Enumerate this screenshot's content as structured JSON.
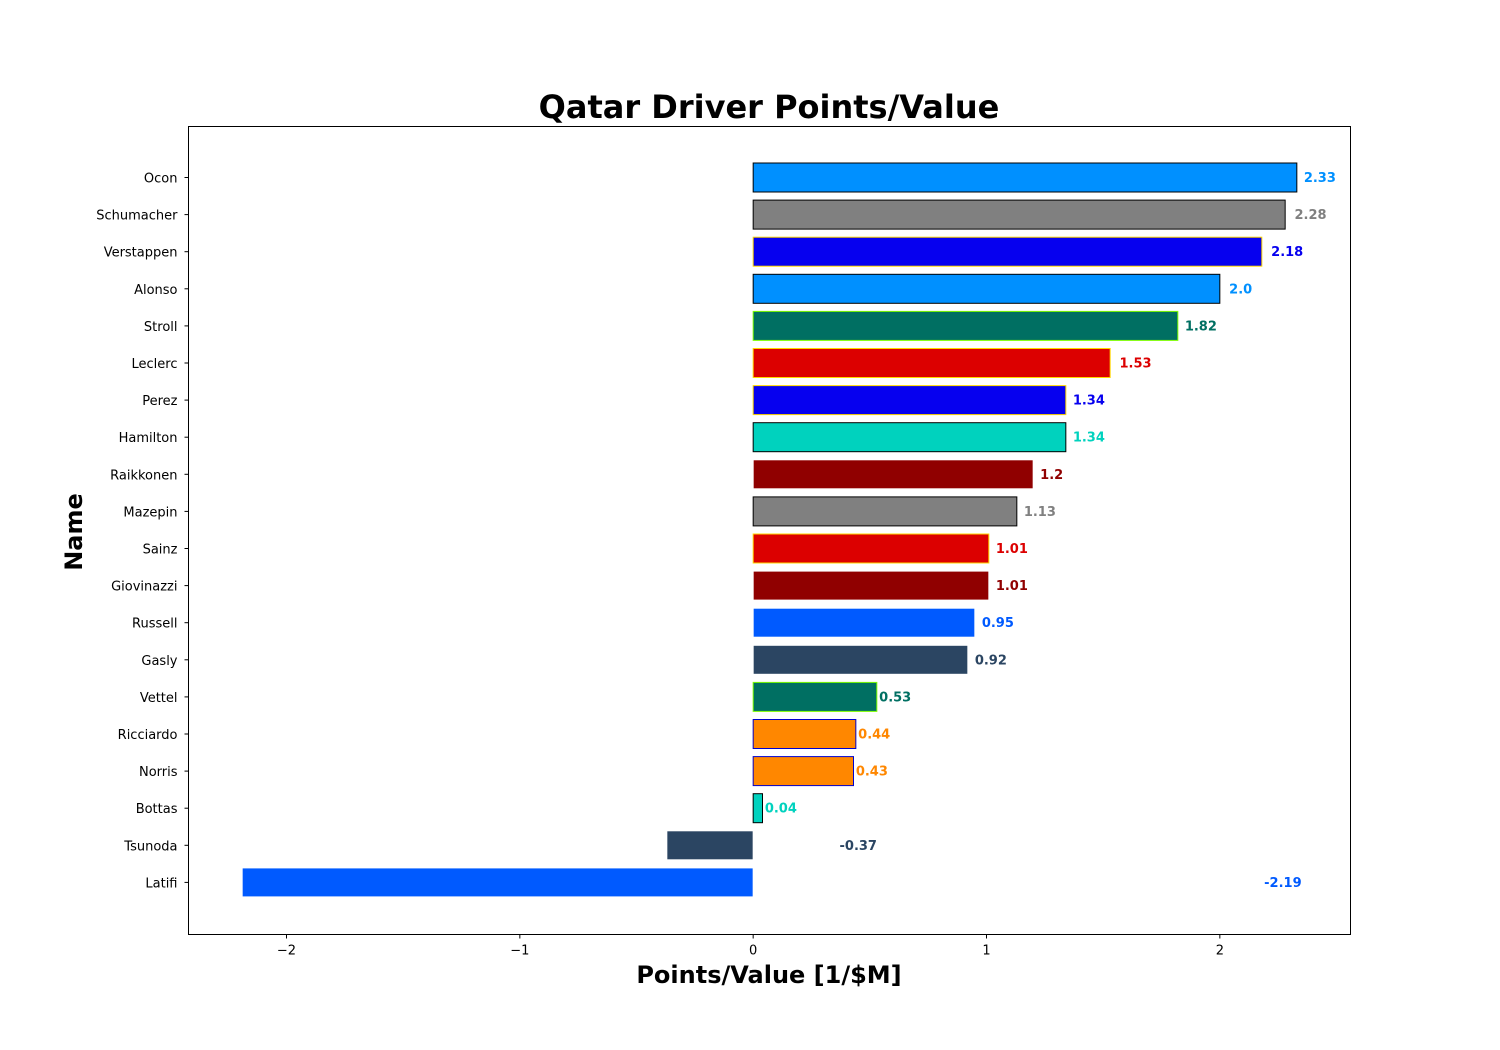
{
  "chart_data": {
    "type": "bar",
    "orientation": "horizontal",
    "title": "Qatar Driver Points/Value",
    "xlabel": "Points/Value [1/$M]",
    "ylabel": "Name",
    "xlim": [
      -2.42,
      2.56
    ],
    "xticks": [
      -2,
      -1,
      0,
      1,
      2
    ],
    "xtick_labels": [
      "−2",
      "−1",
      "0",
      "1",
      "2"
    ],
    "grid": false,
    "bars": [
      {
        "name": "Ocon",
        "value": 2.33,
        "label": "2.33",
        "label_x": 2.36,
        "fill": "#0090FF",
        "edge": "#000000"
      },
      {
        "name": "Schumacher",
        "value": 2.28,
        "label": "2.28",
        "label_x": 2.32,
        "fill": "#808080",
        "edge": "#000000"
      },
      {
        "name": "Verstappen",
        "value": 2.18,
        "label": "2.18",
        "label_x": 2.22,
        "fill": "#0600EF",
        "edge": "#FFD700"
      },
      {
        "name": "Alonso",
        "value": 2.0,
        "label": "2.0",
        "label_x": 2.04,
        "fill": "#0090FF",
        "edge": "#000000"
      },
      {
        "name": "Stroll",
        "value": 1.82,
        "label": "1.82",
        "label_x": 1.85,
        "fill": "#006F62",
        "edge": "#7CFC00"
      },
      {
        "name": "Leclerc",
        "value": 1.53,
        "label": "1.53",
        "label_x": 1.57,
        "fill": "#DC0000",
        "edge": "#FFD700"
      },
      {
        "name": "Perez",
        "value": 1.34,
        "label": "1.34",
        "label_x": 1.37,
        "fill": "#0600EF",
        "edge": "#FFD700"
      },
      {
        "name": "Hamilton",
        "value": 1.34,
        "label": "1.34",
        "label_x": 1.37,
        "fill": "#00D2BE",
        "edge": "#000000"
      },
      {
        "name": "Raikkonen",
        "value": 1.2,
        "label": "1.2",
        "label_x": 1.23,
        "fill": "#900000",
        "edge": "#FFFFFF"
      },
      {
        "name": "Mazepin",
        "value": 1.13,
        "label": "1.13",
        "label_x": 1.16,
        "fill": "#808080",
        "edge": "#000000"
      },
      {
        "name": "Sainz",
        "value": 1.01,
        "label": "1.01",
        "label_x": 1.04,
        "fill": "#DC0000",
        "edge": "#FFD700"
      },
      {
        "name": "Giovinazzi",
        "value": 1.01,
        "label": "1.01",
        "label_x": 1.04,
        "fill": "#900000",
        "edge": "#FFFFFF"
      },
      {
        "name": "Russell",
        "value": 0.95,
        "label": "0.95",
        "label_x": 0.98,
        "fill": "#005AFF",
        "edge": "#FFFFFF"
      },
      {
        "name": "Gasly",
        "value": 0.92,
        "label": "0.92",
        "label_x": 0.95,
        "fill": "#2B4562",
        "edge": "#FFFFFF"
      },
      {
        "name": "Vettel",
        "value": 0.53,
        "label": "0.53",
        "label_x": 0.54,
        "fill": "#006F62",
        "edge": "#7CFC00"
      },
      {
        "name": "Ricciardo",
        "value": 0.44,
        "label": "0.44",
        "label_x": 0.45,
        "fill": "#FF8700",
        "edge": "#0000CD"
      },
      {
        "name": "Norris",
        "value": 0.43,
        "label": "0.43",
        "label_x": 0.44,
        "fill": "#FF8700",
        "edge": "#0000CD"
      },
      {
        "name": "Bottas",
        "value": 0.04,
        "label": "0.04",
        "label_x": 0.05,
        "fill": "#00D2BE",
        "edge": "#000000"
      },
      {
        "name": "Tsunoda",
        "value": -0.37,
        "label": "-0.37",
        "label_x": 0.37,
        "fill": "#2B4562",
        "edge": "#FFFFFF"
      },
      {
        "name": "Latifi",
        "value": -2.19,
        "label": "-2.19",
        "label_x": 2.19,
        "fill": "#005AFF",
        "edge": "#FFFFFF"
      }
    ]
  }
}
